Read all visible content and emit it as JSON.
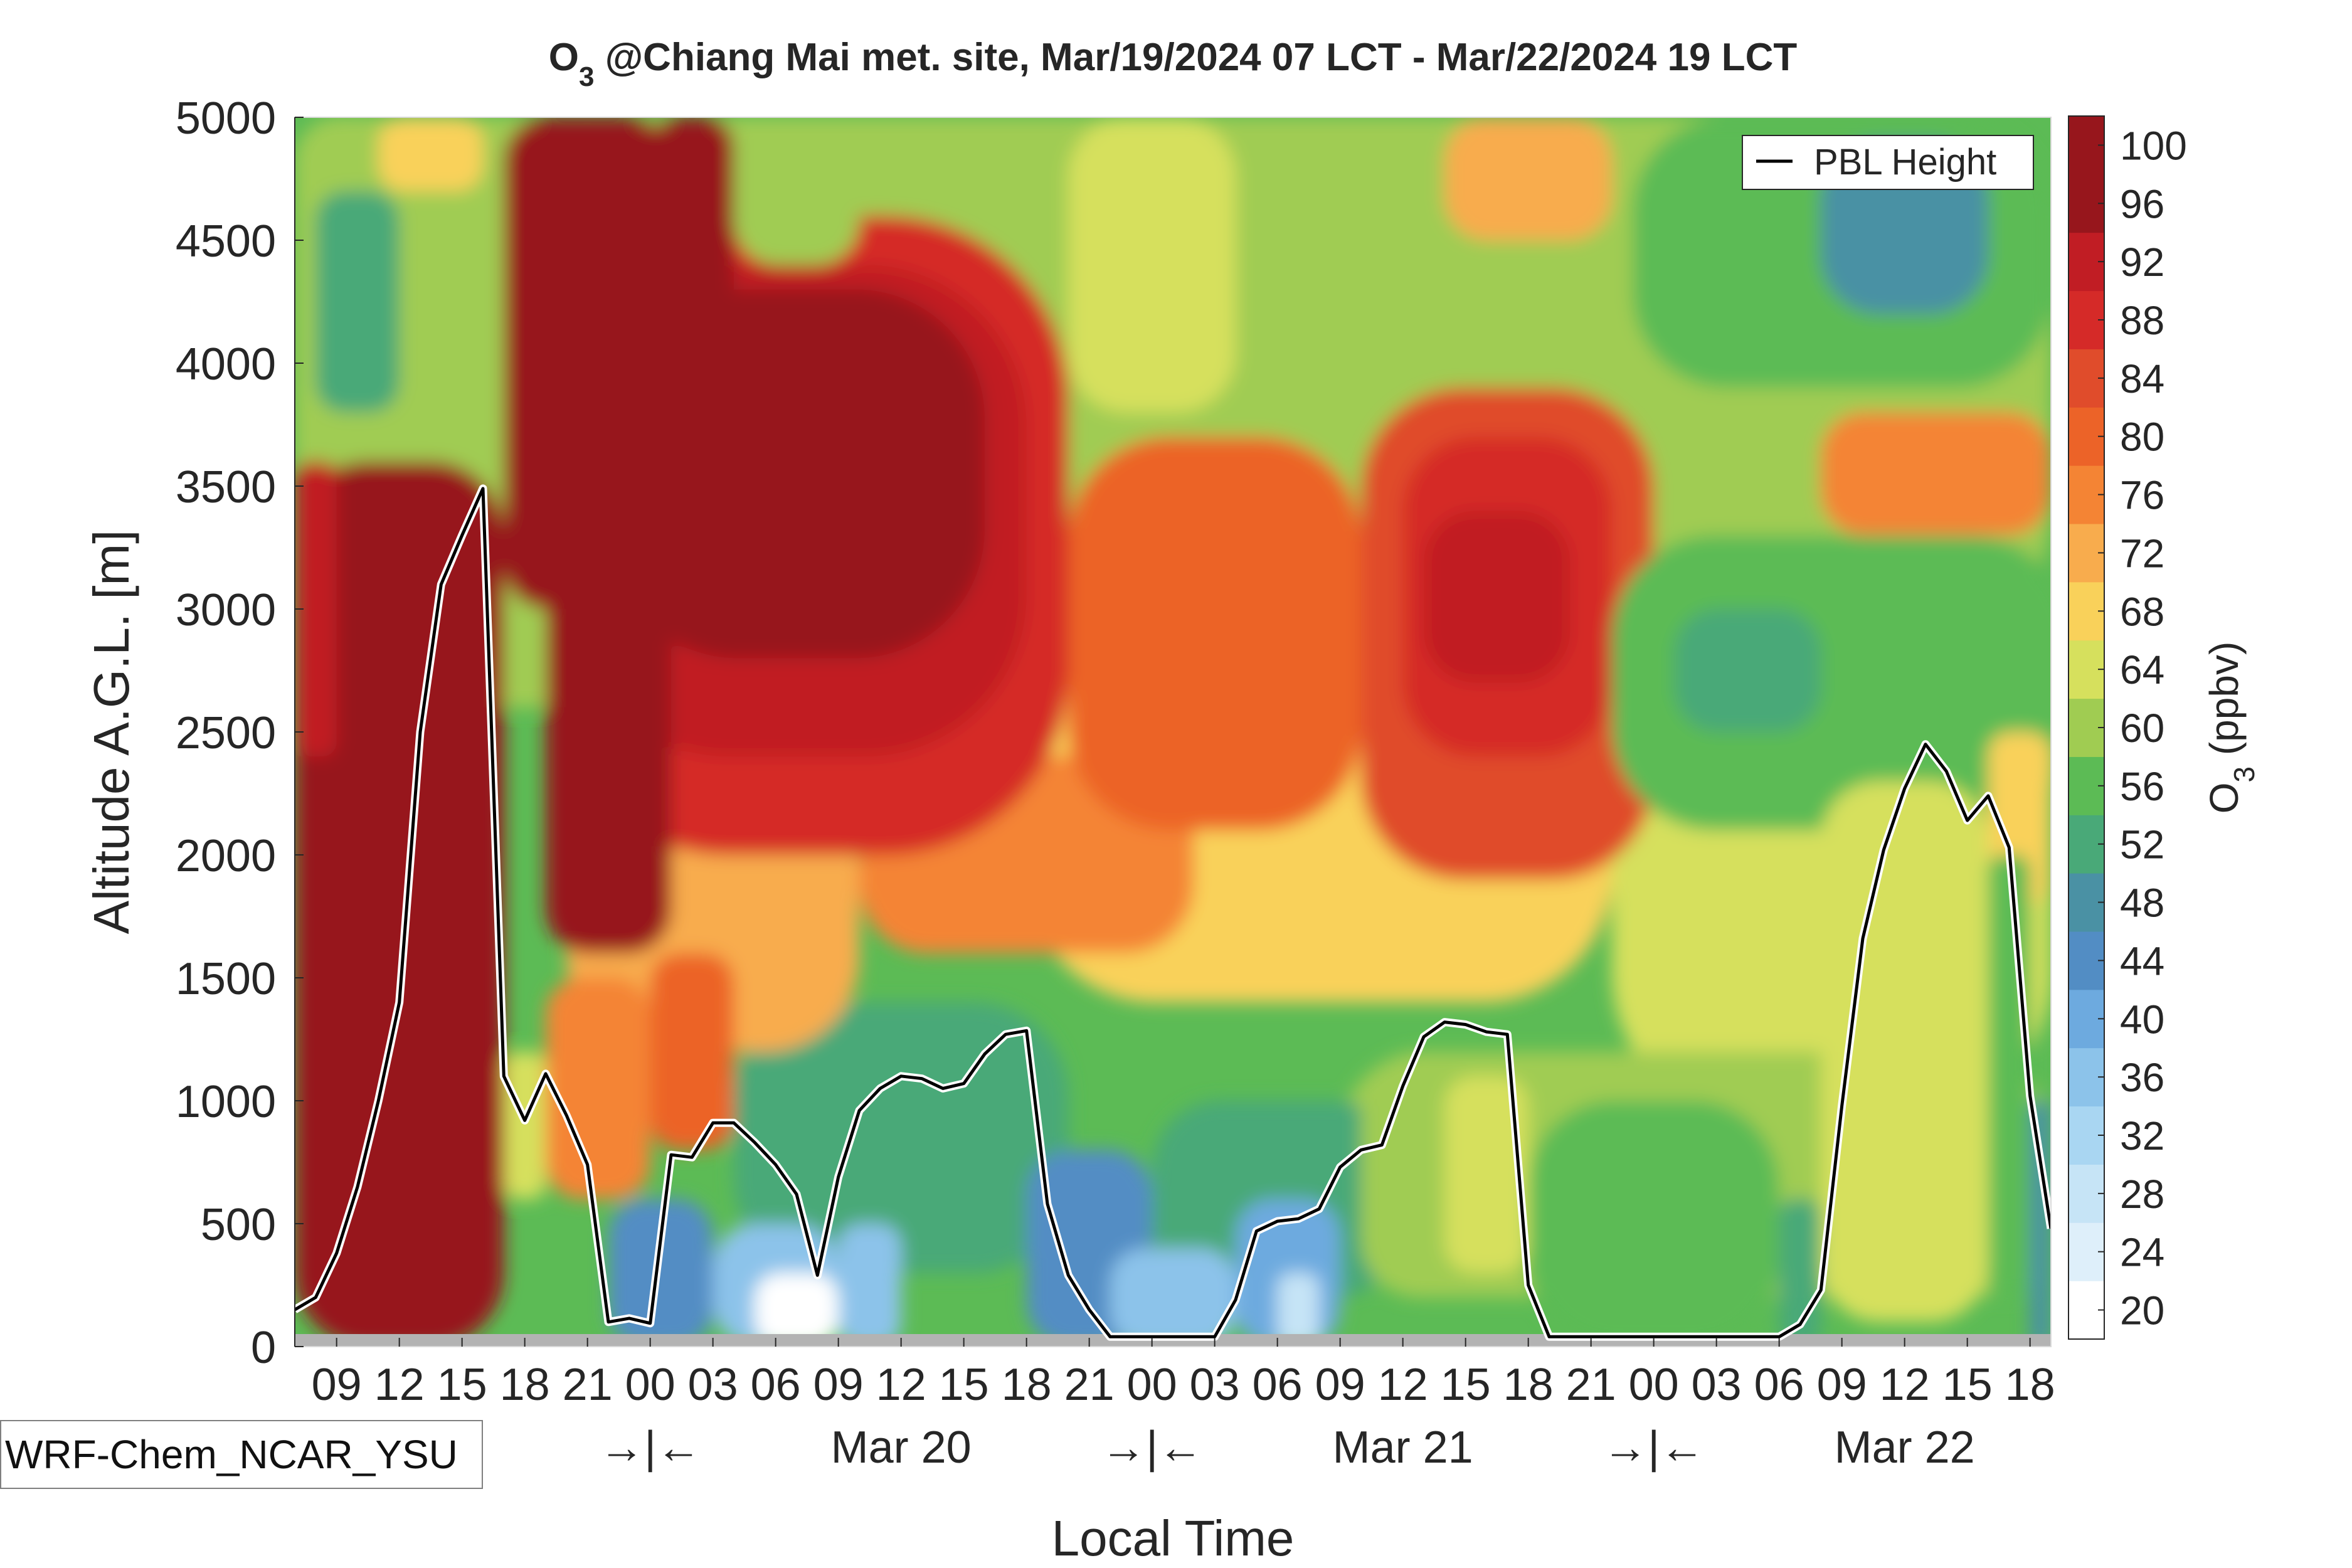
{
  "chart_data": {
    "type": "heatmap",
    "title_species": "O",
    "title_subscript": "3",
    "title_rest": " @Chiang Mai met. site, Mar/19/2024 07 LCT - Mar/22/2024 19 LCT",
    "xlabel": "Local Time",
    "ylabel": "Altitude A.G.L. [m]",
    "ylim": [
      0,
      5000
    ],
    "yticks": [
      "0",
      "500",
      "1000",
      "1500",
      "2000",
      "2500",
      "3000",
      "3500",
      "4000",
      "4500",
      "5000"
    ],
    "x_hour_start": 7,
    "x_hour_end": 91,
    "xticks": [
      {
        "hour": 9,
        "label": "09"
      },
      {
        "hour": 12,
        "label": "12"
      },
      {
        "hour": 15,
        "label": "15"
      },
      {
        "hour": 18,
        "label": "18"
      },
      {
        "hour": 21,
        "label": "21"
      },
      {
        "hour": 24,
        "label": "00"
      },
      {
        "hour": 27,
        "label": "03"
      },
      {
        "hour": 30,
        "label": "06"
      },
      {
        "hour": 33,
        "label": "09"
      },
      {
        "hour": 36,
        "label": "12"
      },
      {
        "hour": 39,
        "label": "15"
      },
      {
        "hour": 42,
        "label": "18"
      },
      {
        "hour": 45,
        "label": "21"
      },
      {
        "hour": 48,
        "label": "00"
      },
      {
        "hour": 51,
        "label": "03"
      },
      {
        "hour": 54,
        "label": "06"
      },
      {
        "hour": 57,
        "label": "09"
      },
      {
        "hour": 60,
        "label": "12"
      },
      {
        "hour": 63,
        "label": "15"
      },
      {
        "hour": 66,
        "label": "18"
      },
      {
        "hour": 69,
        "label": "21"
      },
      {
        "hour": 72,
        "label": "00"
      },
      {
        "hour": 75,
        "label": "03"
      },
      {
        "hour": 78,
        "label": "06"
      },
      {
        "hour": 81,
        "label": "09"
      },
      {
        "hour": 84,
        "label": "12"
      },
      {
        "hour": 87,
        "label": "15"
      },
      {
        "hour": 90,
        "label": "18"
      }
    ],
    "day_labels": [
      {
        "hour": 24,
        "label": "→|←"
      },
      {
        "hour": 36,
        "label": "Mar 20"
      },
      {
        "hour": 48,
        "label": "→|←"
      },
      {
        "hour": 60,
        "label": "Mar 21"
      },
      {
        "hour": 72,
        "label": "→|←"
      },
      {
        "hour": 84,
        "label": "Mar 22"
      }
    ],
    "colorbar": {
      "label_species": "O",
      "label_subscript": "3",
      "label_rest": " (ppbv)",
      "levels": [
        20,
        24,
        28,
        32,
        36,
        40,
        44,
        48,
        52,
        56,
        60,
        64,
        68,
        72,
        76,
        80,
        84,
        88,
        92,
        96,
        100
      ],
      "ticklabels": [
        "20",
        "24",
        "28",
        "32",
        "36",
        "40",
        "44",
        "48",
        "52",
        "56",
        "60",
        "64",
        "68",
        "72",
        "76",
        "80",
        "84",
        "88",
        "92",
        "96",
        "100"
      ],
      "colors": [
        "#ffffff",
        "#deeffa",
        "#c6e4f6",
        "#a9d6f2",
        "#8cc3ea",
        "#6daadf",
        "#528dc4",
        "#4a91a4",
        "#49a978",
        "#5cbb55",
        "#a0cc52",
        "#d6e05d",
        "#f9d15a",
        "#f8ac4d",
        "#f48434",
        "#ec6328",
        "#e04c2b",
        "#d52a28",
        "#c11d24",
        "#97161c",
        "#97161c"
      ]
    },
    "legend": {
      "label": "PBL Height",
      "position": "top-right"
    },
    "model_label": "WRF-Chem_NCAR_YSU",
    "pbl_height": [
      [
        7,
        150
      ],
      [
        8,
        200
      ],
      [
        9,
        380
      ],
      [
        10,
        650
      ],
      [
        11,
        1000
      ],
      [
        12,
        1400
      ],
      [
        13,
        2500
      ],
      [
        14,
        3100
      ],
      [
        15,
        3300
      ],
      [
        16,
        3490
      ],
      [
        17,
        1100
      ],
      [
        18,
        920
      ],
      [
        19,
        1110
      ],
      [
        20,
        940
      ],
      [
        21,
        740
      ],
      [
        22,
        100
      ],
      [
        23,
        115
      ],
      [
        24,
        95
      ],
      [
        25,
        780
      ],
      [
        26,
        770
      ],
      [
        27,
        910
      ],
      [
        28,
        910
      ],
      [
        29,
        830
      ],
      [
        30,
        740
      ],
      [
        31,
        620
      ],
      [
        32,
        290
      ],
      [
        33,
        690
      ],
      [
        34,
        960
      ],
      [
        35,
        1050
      ],
      [
        36,
        1100
      ],
      [
        37,
        1090
      ],
      [
        38,
        1050
      ],
      [
        39,
        1070
      ],
      [
        40,
        1190
      ],
      [
        41,
        1270
      ],
      [
        42,
        1285
      ],
      [
        43,
        580
      ],
      [
        44,
        290
      ],
      [
        45,
        150
      ],
      [
        46,
        40
      ],
      [
        47,
        40
      ],
      [
        48,
        40
      ],
      [
        49,
        40
      ],
      [
        50,
        40
      ],
      [
        51,
        40
      ],
      [
        52,
        190
      ],
      [
        53,
        470
      ],
      [
        54,
        510
      ],
      [
        55,
        520
      ],
      [
        56,
        560
      ],
      [
        57,
        730
      ],
      [
        58,
        800
      ],
      [
        59,
        820
      ],
      [
        60,
        1060
      ],
      [
        61,
        1260
      ],
      [
        62,
        1320
      ],
      [
        63,
        1310
      ],
      [
        64,
        1280
      ],
      [
        65,
        1270
      ],
      [
        66,
        250
      ],
      [
        67,
        40
      ],
      [
        68,
        40
      ],
      [
        69,
        40
      ],
      [
        70,
        40
      ],
      [
        71,
        40
      ],
      [
        72,
        40
      ],
      [
        73,
        40
      ],
      [
        74,
        40
      ],
      [
        75,
        40
      ],
      [
        76,
        40
      ],
      [
        77,
        40
      ],
      [
        78,
        40
      ],
      [
        79,
        90
      ],
      [
        80,
        230
      ],
      [
        81,
        980
      ],
      [
        82,
        1660
      ],
      [
        83,
        2020
      ],
      [
        84,
        2270
      ],
      [
        85,
        2450
      ],
      [
        86,
        2340
      ],
      [
        87,
        2140
      ],
      [
        88,
        2240
      ],
      [
        89,
        2030
      ],
      [
        90,
        1020
      ],
      [
        91,
        480
      ]
    ]
  }
}
